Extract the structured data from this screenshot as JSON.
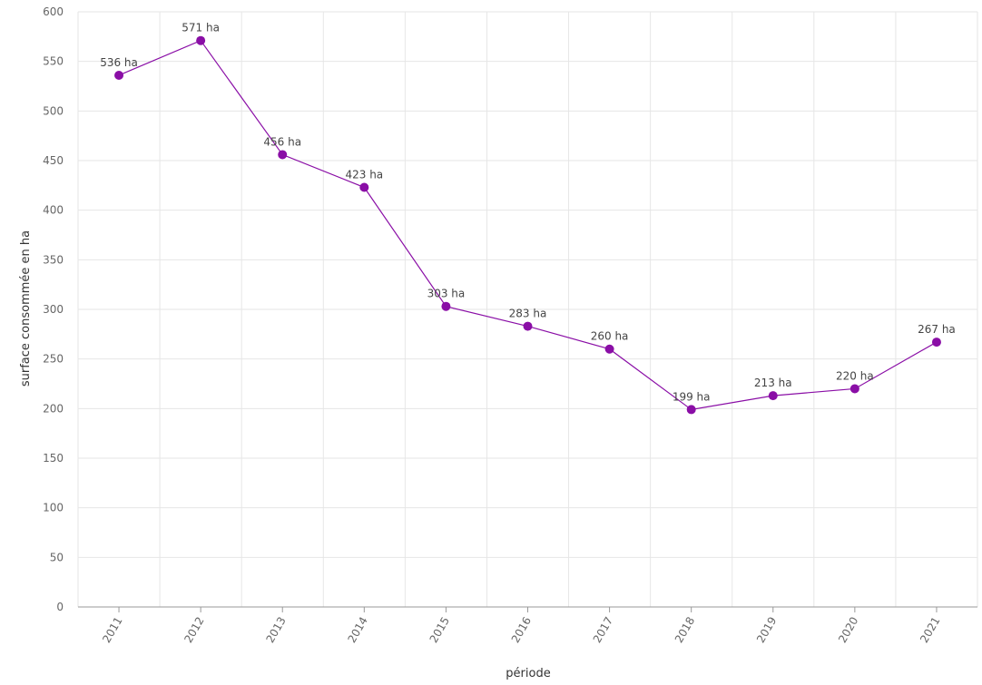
{
  "chart_data": {
    "type": "line",
    "title": "",
    "xlabel": "période",
    "ylabel": "surface consommée en ha",
    "categories": [
      "2011",
      "2012",
      "2013",
      "2014",
      "2015",
      "2016",
      "2017",
      "2018",
      "2019",
      "2020",
      "2021"
    ],
    "series": [
      {
        "values": [
          536,
          571,
          456,
          423,
          303,
          283,
          260,
          199,
          213,
          220,
          267
        ],
        "data_labels": [
          "536 ha",
          "571 ha",
          "456 ha",
          "423 ha",
          "303 ha",
          "283 ha",
          "260 ha",
          "199 ha",
          "213 ha",
          "220 ha",
          "267 ha"
        ],
        "color": "#8a0ea6"
      }
    ],
    "y_ticks": [
      "0",
      "50",
      "100",
      "150",
      "200",
      "250",
      "300",
      "350",
      "400",
      "450",
      "500",
      "550",
      "600"
    ],
    "ylim": [
      0,
      600
    ],
    "grid": true,
    "legend": "none"
  }
}
